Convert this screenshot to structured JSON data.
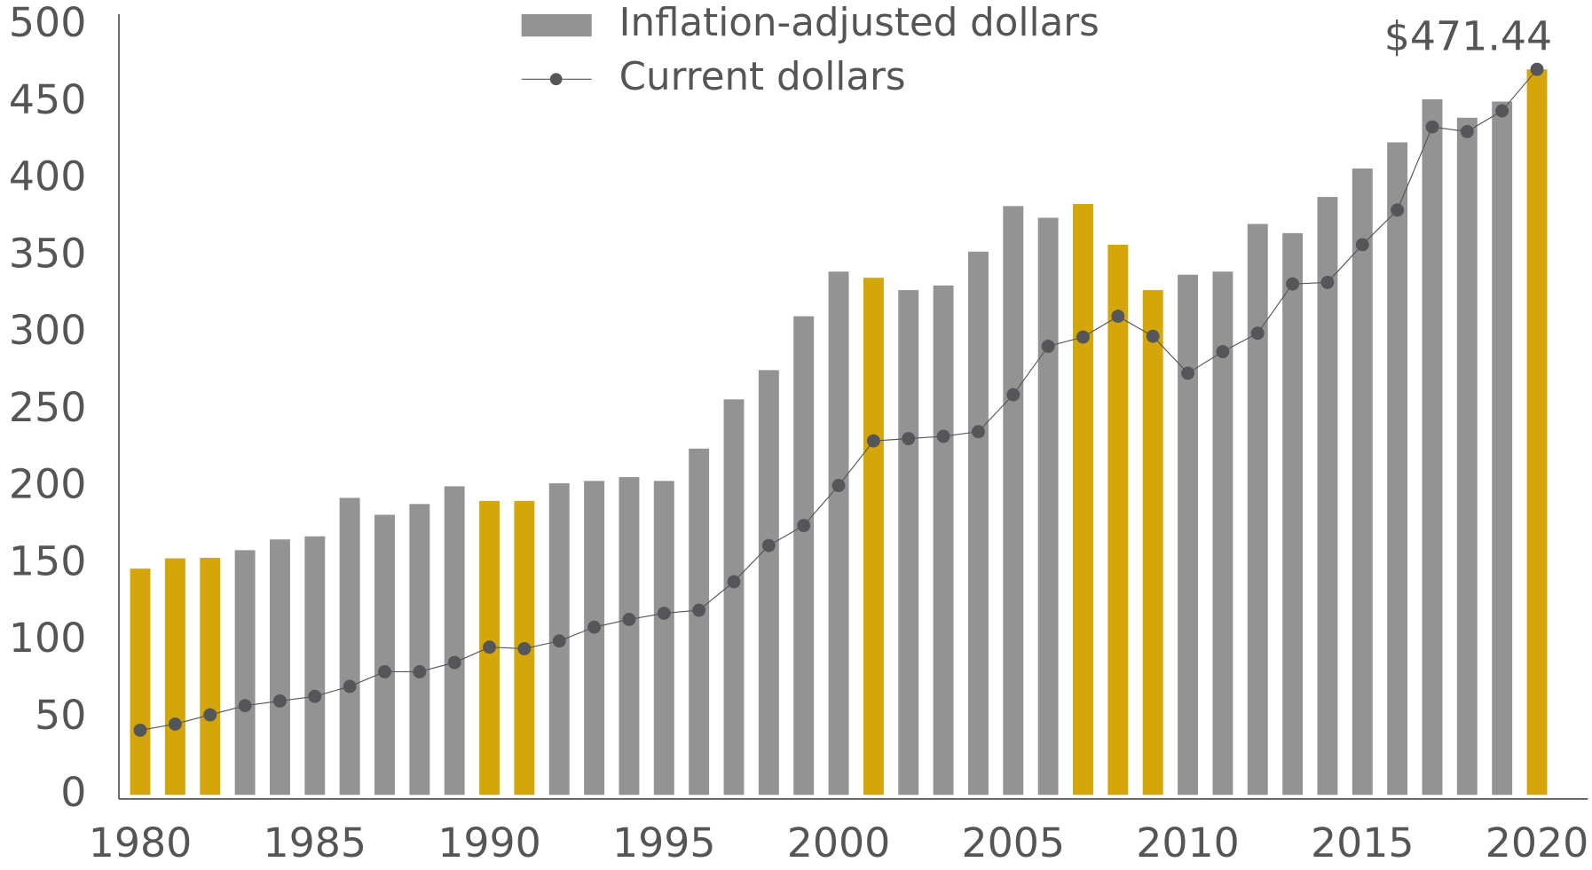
{
  "chart_data": {
    "type": "bar_line",
    "x": [
      1980,
      1981,
      1982,
      1983,
      1984,
      1985,
      1986,
      1987,
      1988,
      1989,
      1990,
      1991,
      1992,
      1993,
      1994,
      1995,
      1996,
      1997,
      1998,
      1999,
      2000,
      2001,
      2002,
      2003,
      2004,
      2005,
      2006,
      2007,
      2008,
      2009,
      2010,
      2011,
      2012,
      2013,
      2014,
      2015,
      2016,
      2017,
      2018,
      2019,
      2020
    ],
    "series": [
      {
        "name": "Inflation-adjusted dollars",
        "kind": "bar",
        "color": "#939393",
        "colors": [
          "#d4a60a",
          "#d4a60a",
          "#d4a60a",
          "#939393",
          "#939393",
          "#939393",
          "#939393",
          "#939393",
          "#939393",
          "#939393",
          "#d4a60a",
          "#d4a60a",
          "#939393",
          "#939393",
          "#939393",
          "#939393",
          "#939393",
          "#939393",
          "#939393",
          "#939393",
          "#939393",
          "#d4a60a",
          "#939393",
          "#939393",
          "#939393",
          "#939393",
          "#939393",
          "#d4a60a",
          "#d4a60a",
          "#d4a60a",
          "#939393",
          "#939393",
          "#939393",
          "#939393",
          "#939393",
          "#939393",
          "#939393",
          "#939393",
          "#939393",
          "#939393",
          "#d4a60a"
        ],
        "values": [
          147,
          153.7,
          154,
          159,
          166,
          168,
          193,
          182,
          189,
          200.5,
          191,
          191,
          202.5,
          204,
          206.5,
          204,
          225,
          257,
          276,
          311,
          340,
          336,
          328,
          331,
          353,
          382.6,
          375,
          384,
          357.5,
          328,
          338,
          340,
          371,
          365,
          388.5,
          407,
          424,
          452,
          440,
          450.5,
          471.44
        ]
      },
      {
        "name": "Current dollars",
        "kind": "line",
        "color": "#55565a",
        "values": [
          42,
          46,
          52,
          58,
          61,
          64,
          70.5,
          80,
          80,
          86,
          96,
          95,
          100,
          109,
          114,
          118,
          120,
          138.5,
          162,
          175,
          201,
          230,
          231.5,
          233,
          236,
          260,
          291.5,
          297.5,
          311,
          298,
          274,
          288,
          300,
          332,
          333,
          357.5,
          380,
          434,
          431,
          444.5,
          471.44
        ]
      }
    ],
    "annotation": "$471.44",
    "xlim": [
      1979.39,
      2021.4
    ],
    "xticks": [
      1980,
      1985,
      1990,
      1995,
      2000,
      2005,
      2010,
      2015,
      2020
    ],
    "ylim": [
      0,
      507
    ],
    "yticks": [
      0,
      50,
      100,
      150,
      200,
      250,
      300,
      350,
      400,
      450,
      500
    ]
  }
}
